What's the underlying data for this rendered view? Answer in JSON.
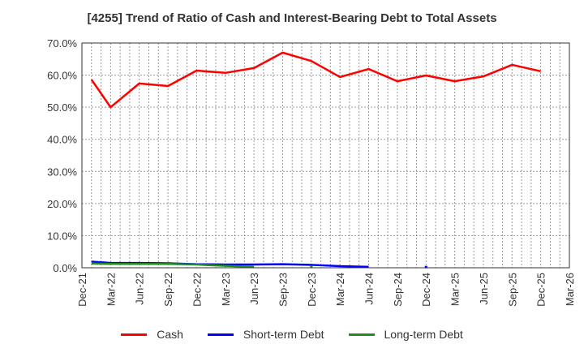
{
  "chart_data": {
    "type": "line",
    "title": "[4255]  Trend of Ratio of Cash and Interest-Bearing Debt to Total Assets",
    "xlabel": "",
    "ylabel": "",
    "ylim": [
      0,
      70
    ],
    "y_ticks": [
      "0.0%",
      "10.0%",
      "20.0%",
      "30.0%",
      "40.0%",
      "50.0%",
      "60.0%",
      "70.0%"
    ],
    "x_ticks": [
      "Dec-21",
      "Mar-22",
      "Jun-22",
      "Sep-22",
      "Dec-22",
      "Mar-23",
      "Jun-23",
      "Sep-23",
      "Dec-23",
      "Mar-24",
      "Jun-24",
      "Sep-24",
      "Dec-24",
      "Mar-25",
      "Jun-25",
      "Sep-25",
      "Dec-25",
      "Mar-26"
    ],
    "grid": true,
    "legend_position": "bottom",
    "x": [
      "Jan-22",
      "Mar-22",
      "Jun-22",
      "Sep-22",
      "Dec-22",
      "Mar-23",
      "Jun-23",
      "Sep-23",
      "Dec-23",
      "Mar-24",
      "Jun-24",
      "Sep-24",
      "Dec-24",
      "Mar-25",
      "Jun-25",
      "Sep-25",
      "Dec-25"
    ],
    "series": [
      {
        "name": "Cash",
        "color": "#ff0000",
        "values": [
          58.6,
          50.0,
          57.4,
          56.6,
          61.4,
          60.7,
          62.2,
          67.0,
          64.4,
          59.4,
          61.9,
          58.1,
          59.9,
          58.1,
          59.6,
          63.2,
          61.2
        ]
      },
      {
        "name": "Short-term Debt",
        "color": "#0000ff",
        "values": [
          1.9,
          1.5,
          1.5,
          1.4,
          1.1,
          1.0,
          1.0,
          1.1,
          0.9,
          0.5,
          0.3,
          null,
          0.2,
          null,
          null,
          null,
          null
        ]
      },
      {
        "name": "Long-term Debt",
        "color": "#228b22",
        "values": [
          1.3,
          1.2,
          1.2,
          1.2,
          1.0,
          0.6,
          0.3,
          null,
          0.3,
          null,
          null,
          null,
          null,
          null,
          null,
          null,
          null
        ]
      }
    ]
  },
  "legend": {
    "items": [
      {
        "label": "Cash",
        "color": "#ff0000"
      },
      {
        "label": "Short-term Debt",
        "color": "#0000ff"
      },
      {
        "label": "Long-term Debt",
        "color": "#228b22"
      }
    ]
  }
}
